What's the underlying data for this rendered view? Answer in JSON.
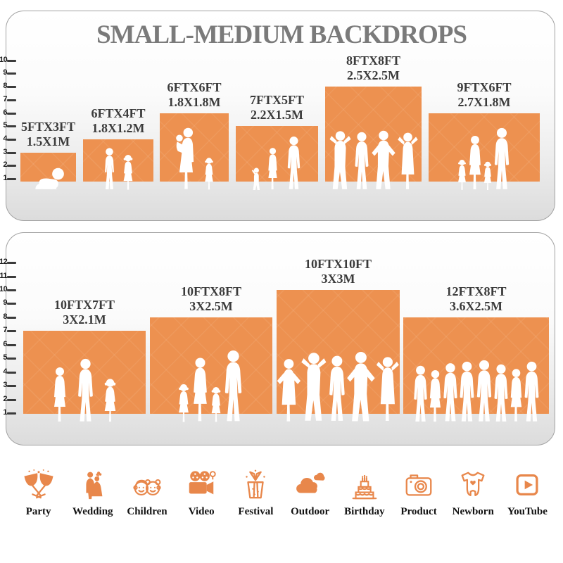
{
  "title": "SMALL-MEDIUM BACKDROPS",
  "colors": {
    "backdrop_orange": "#ED9150",
    "icon_orange": "#E8874B",
    "title_gray": "#7A7A7A",
    "label_dark": "#3B3B3B",
    "panel_gray": "#DCDCDC"
  },
  "chart_data": {
    "type": "bar",
    "title": "SMALL-MEDIUM BACKDROPS",
    "ylabel": "",
    "xlabel": "",
    "panels": [
      {
        "name": "top-panel",
        "ruler_ticks": [
          1,
          2,
          3,
          4,
          5,
          6,
          7,
          8,
          9,
          10
        ],
        "backdrops": [
          {
            "size_ft": "5FTX3FT",
            "size_m": "1.5X1M",
            "width_ft": 5,
            "height_ft": 3,
            "figures": [
              "baby-crawl"
            ]
          },
          {
            "size_ft": "6FTX4FT",
            "size_m": "1.8X1.2M",
            "width_ft": 6,
            "height_ft": 4,
            "figures": [
              "boy",
              "girl"
            ]
          },
          {
            "size_ft": "6FTX6FT",
            "size_m": "1.8X1.8M",
            "width_ft": 6,
            "height_ft": 6,
            "figures": [
              "woman-baby",
              "girl"
            ]
          },
          {
            "size_ft": "7FTX5FT",
            "size_m": "2.2X1.5M",
            "width_ft": 7,
            "height_ft": 5,
            "figures": [
              "toddler",
              "woman",
              "man"
            ]
          },
          {
            "size_ft": "8FTX8FT",
            "size_m": "2.5X2.5M",
            "width_ft": 8,
            "height_ft": 8,
            "figures": [
              "man-pose",
              "man",
              "man-hips",
              "woman-pose"
            ]
          },
          {
            "size_ft": "9FTX6FT",
            "size_m": "2.7X1.8M",
            "width_ft": 9,
            "height_ft": 6,
            "figures": [
              "girl",
              "woman",
              "girl",
              "man"
            ]
          }
        ]
      },
      {
        "name": "bottom-panel",
        "ruler_ticks": [
          1,
          2,
          3,
          4,
          5,
          6,
          7,
          8,
          9,
          10,
          11,
          12
        ],
        "backdrops": [
          {
            "size_ft": "10FTX7FT",
            "size_m": "3X2.1M",
            "width_ft": 10,
            "height_ft": 7,
            "figures": [
              "woman",
              "man",
              "girl"
            ]
          },
          {
            "size_ft": "10FTX8FT",
            "size_m": "3X2.5M",
            "width_ft": 10,
            "height_ft": 8,
            "figures": [
              "girl",
              "woman",
              "girl",
              "man"
            ]
          },
          {
            "size_ft": "10FTX10FT",
            "size_m": "3X3M",
            "width_ft": 10,
            "height_ft": 10,
            "figures": [
              "woman-hips",
              "man-pose",
              "man",
              "man-hips",
              "woman-pose"
            ]
          },
          {
            "size_ft": "12FTX8FT",
            "size_m": "3.6X2.5M",
            "width_ft": 12,
            "height_ft": 8,
            "figures": [
              "man",
              "woman",
              "man",
              "man",
              "man",
              "man",
              "woman",
              "man"
            ]
          }
        ]
      }
    ]
  },
  "categories": [
    {
      "label": "Party",
      "icon": "party-icon"
    },
    {
      "label": "Wedding",
      "icon": "wedding-icon"
    },
    {
      "label": "Children",
      "icon": "children-icon"
    },
    {
      "label": "Video",
      "icon": "video-icon"
    },
    {
      "label": "Festival",
      "icon": "festival-icon"
    },
    {
      "label": "Outdoor",
      "icon": "outdoor-icon"
    },
    {
      "label": "Birthday",
      "icon": "birthday-icon"
    },
    {
      "label": "Product",
      "icon": "product-icon"
    },
    {
      "label": "Newborn",
      "icon": "newborn-icon"
    },
    {
      "label": "YouTube",
      "icon": "youtube-icon"
    }
  ]
}
